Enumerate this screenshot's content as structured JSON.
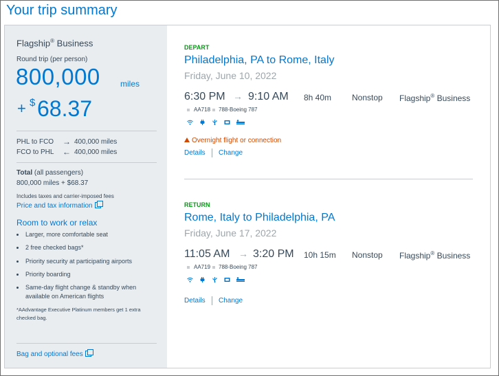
{
  "page_title": "Your trip summary",
  "summary": {
    "cabin": "Flagship",
    "cabin_mark": "®",
    "cabin_suffix": " Business",
    "trip_type": "Round trip (per person)",
    "miles_amount": "800,000",
    "miles_unit": "miles",
    "plus": "+",
    "currency": "$",
    "cash_amount": "68.37",
    "segments": [
      {
        "label": "PHL to FCO",
        "arrow": "→",
        "miles": "400,000 miles"
      },
      {
        "label": "FCO to PHL",
        "arrow": "←",
        "miles": "400,000 miles"
      }
    ],
    "total_label": "Total",
    "total_suffix": " (all passengers)",
    "total_value": "800,000 miles + $68.37",
    "includes_note": "Includes taxes and carrier-imposed fees",
    "price_link": "Price and tax information",
    "benefits_title": "Room to work or relax",
    "benefits": [
      "Larger, more comfortable seat",
      "2 free checked bags*",
      "Priority security at participating airports",
      "Priority boarding",
      "Same-day flight change & standby when available on American flights"
    ],
    "footnote": "*AAdvantage Executive Platinum members get 1 extra checked bag.",
    "bag_link": "Bag and optional fees"
  },
  "flights": [
    {
      "direction": "DEPART",
      "route": "Philadelphia, PA to Rome, Italy",
      "date": "Friday, June 10, 2022",
      "depart_time": "6:30 PM",
      "arrow": "→",
      "arrive_time": "9:10 AM",
      "duration": "8h 40m",
      "stops": "Nonstop",
      "cabin": "Flagship",
      "cabin_mark": "®",
      "cabin_suffix": " Business",
      "flight_number": "AA718",
      "aircraft": "788-Boeing 787",
      "warning": "Overnight flight or connection",
      "details_link": "Details",
      "change_link": "Change"
    },
    {
      "direction": "RETURN",
      "route": "Rome, Italy to Philadelphia, PA",
      "date": "Friday, June 17, 2022",
      "depart_time": "11:05 AM",
      "arrow": "→",
      "arrive_time": "3:20 PM",
      "duration": "10h 15m",
      "stops": "Nonstop",
      "cabin": "Flagship",
      "cabin_mark": "®",
      "cabin_suffix": " Business",
      "flight_number": "AA719",
      "aircraft": "788-Boeing 787",
      "details_link": "Details",
      "change_link": "Change"
    }
  ],
  "icons": [
    "wifi-icon",
    "power-outlet-icon",
    "usb-icon",
    "entertainment-icon",
    "lie-flat-seat-icon"
  ],
  "colors": {
    "accent": "#0078d2",
    "depart": "#00a010",
    "warning": "#d14900",
    "sidebar": "#e9edf0"
  }
}
